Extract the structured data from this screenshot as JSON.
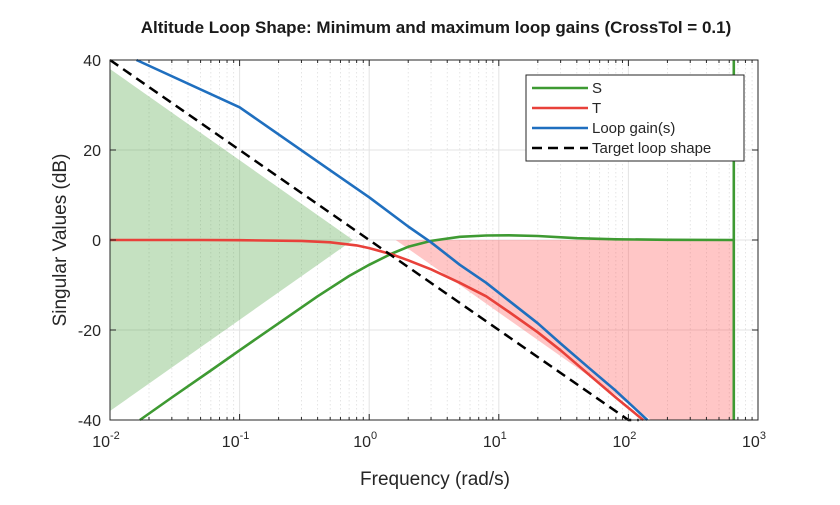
{
  "chart_data": {
    "type": "line",
    "title": "Altitude Loop Shape: Minimum and maximum loop gains (CrossTol = 0.1)",
    "xlabel": "Frequency (rad/s)",
    "ylabel": "Singular Values (dB)",
    "xscale": "log",
    "xlim": [
      0.01,
      1000
    ],
    "ylim": [
      -40,
      40
    ],
    "xticks": [
      {
        "base": "10",
        "exp": "-2"
      },
      {
        "base": "10",
        "exp": "-1"
      },
      {
        "base": "10",
        "exp": "0"
      },
      {
        "base": "10",
        "exp": "1"
      },
      {
        "base": "10",
        "exp": "2"
      },
      {
        "base": "10",
        "exp": "3"
      }
    ],
    "yticks": [
      "40",
      "20",
      "0",
      "-20",
      "-40"
    ],
    "grid": true,
    "legend_position": "top-right",
    "legend": [
      {
        "name": "S",
        "color": "#3e9a32",
        "style": "solid"
      },
      {
        "name": "T",
        "color": "#e8413a",
        "style": "solid"
      },
      {
        "name": "Loop gain(s)",
        "color": "#1f6fbf",
        "style": "solid"
      },
      {
        "name": "Target loop shape",
        "color": "#000000",
        "style": "dashed"
      }
    ],
    "shaded_regions": [
      {
        "color": "#3e9a32",
        "opacity": 0.3,
        "points": [
          [
            0.01,
            38
          ],
          [
            0.01,
            -38
          ],
          [
            0.75,
            0
          ]
        ]
      },
      {
        "color": "#ff4d4d",
        "opacity": 0.32,
        "points": [
          [
            1.6,
            0
          ],
          [
            650,
            0
          ],
          [
            650,
            -40
          ],
          [
            150,
            -40
          ],
          [
            5,
            -10
          ]
        ]
      }
    ],
    "series": [
      {
        "name": "S",
        "color": "#3e9a32",
        "style": "solid",
        "x": [
          0.017,
          0.03,
          0.06,
          0.1,
          0.2,
          0.4,
          0.7,
          1.0,
          1.5,
          2.0,
          3.0,
          5.0,
          8.0,
          12,
          20,
          40,
          80,
          200,
          650
        ],
        "y": [
          -40,
          -35,
          -29,
          -24.5,
          -18.5,
          -12.5,
          -8,
          -5.5,
          -3,
          -1.5,
          -0.2,
          0.7,
          1.0,
          1.05,
          0.9,
          0.4,
          0.15,
          0.05,
          0.0
        ]
      },
      {
        "name": "S",
        "color": "#3e9a32",
        "style": "solid",
        "x": [
          650,
          650
        ],
        "y": [
          -40,
          40
        ]
      },
      {
        "name": "T",
        "color": "#e8413a",
        "style": "solid",
        "x": [
          0.01,
          0.05,
          0.1,
          0.3,
          0.5,
          0.8,
          1.0,
          1.5,
          2.0,
          3.0,
          5.0,
          8.0,
          12,
          20,
          30,
          50,
          80,
          130
        ],
        "y": [
          0,
          0,
          -0.05,
          -0.2,
          -0.5,
          -1.2,
          -1.8,
          -3.2,
          -4.5,
          -6.5,
          -9.5,
          -12.5,
          -16,
          -20.5,
          -24.5,
          -30,
          -35,
          -40
        ]
      },
      {
        "name": "Loop gain(s)",
        "color": "#1f6fbf",
        "style": "solid",
        "x": [
          0.016,
          0.1,
          0.5,
          1.0,
          2.0,
          3.0,
          5.0,
          8.0,
          12,
          20,
          30,
          50,
          80,
          140
        ],
        "y": [
          40,
          29.5,
          15.5,
          9.5,
          3.0,
          -0.5,
          -5.5,
          -9.5,
          -13.5,
          -18.5,
          -23,
          -28.5,
          -33.5,
          -40
        ]
      },
      {
        "name": "Target loop shape",
        "color": "#000000",
        "style": "dashed",
        "x": [
          0.01,
          1.0,
          100,
          120
        ],
        "y": [
          40,
          0,
          -40,
          -40
        ]
      }
    ]
  }
}
